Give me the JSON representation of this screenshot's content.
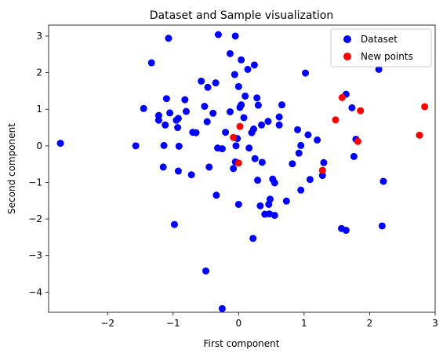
{
  "chart_data": {
    "type": "scatter",
    "title": "Dataset and Sample visualization",
    "xlabel": "First component",
    "ylabel": "Second component",
    "xlim": [
      -2.9,
      3.0
    ],
    "ylim": [
      -4.55,
      3.3
    ],
    "xticks": [
      -2,
      -1,
      0,
      1,
      2,
      3
    ],
    "yticks": [
      -4,
      -3,
      -2,
      -1,
      0,
      1,
      2,
      3
    ],
    "grid": false,
    "legend": "top-right",
    "series": [
      {
        "name": "Dataset",
        "color": "#0000ff",
        "points": [
          [
            -2.72,
            0.07
          ],
          [
            -1.57,
            0.0
          ],
          [
            -1.45,
            1.02
          ],
          [
            -1.33,
            2.27
          ],
          [
            -1.22,
            0.83
          ],
          [
            -1.22,
            0.7
          ],
          [
            -1.15,
            -0.58
          ],
          [
            -1.14,
            0.01
          ],
          [
            -1.12,
            0.57
          ],
          [
            -1.1,
            1.29
          ],
          [
            -1.07,
            2.94
          ],
          [
            -1.05,
            0.9
          ],
          [
            -0.98,
            -2.15
          ],
          [
            -0.95,
            0.7
          ],
          [
            -0.93,
            0.5
          ],
          [
            -0.92,
            0.75
          ],
          [
            -0.92,
            -0.69
          ],
          [
            -0.91,
            -0.01
          ],
          [
            -0.82,
            1.26
          ],
          [
            -0.8,
            0.94
          ],
          [
            -0.72,
            -0.79
          ],
          [
            -0.7,
            0.37
          ],
          [
            -0.65,
            0.36
          ],
          [
            -0.57,
            1.77
          ],
          [
            -0.52,
            1.08
          ],
          [
            -0.5,
            -3.42
          ],
          [
            -0.48,
            0.66
          ],
          [
            -0.47,
            1.6
          ],
          [
            -0.45,
            -0.58
          ],
          [
            -0.39,
            0.89
          ],
          [
            -0.35,
            1.72
          ],
          [
            -0.34,
            -1.35
          ],
          [
            -0.32,
            -0.06
          ],
          [
            -0.31,
            3.04
          ],
          [
            -0.25,
            -0.08
          ],
          [
            -0.25,
            -4.45
          ],
          [
            -0.2,
            0.37
          ],
          [
            -0.13,
            0.93
          ],
          [
            -0.13,
            2.52
          ],
          [
            -0.08,
            -0.62
          ],
          [
            -0.06,
            1.95
          ],
          [
            -0.05,
            3.0
          ],
          [
            -0.05,
            -0.44
          ],
          [
            -0.04,
            0.0
          ],
          [
            -0.02,
            0.2
          ],
          [
            0.0,
            -1.6
          ],
          [
            0.0,
            1.62
          ],
          [
            0.02,
            1.05
          ],
          [
            0.04,
            2.35
          ],
          [
            0.04,
            1.12
          ],
          [
            0.08,
            0.77
          ],
          [
            0.1,
            1.36
          ],
          [
            0.14,
            2.09
          ],
          [
            0.16,
            -0.06
          ],
          [
            0.2,
            0.36
          ],
          [
            0.22,
            -2.53
          ],
          [
            0.23,
            0.46
          ],
          [
            0.24,
            2.21
          ],
          [
            0.25,
            -0.35
          ],
          [
            0.28,
            1.31
          ],
          [
            0.29,
            -0.94
          ],
          [
            0.3,
            1.11
          ],
          [
            0.33,
            -1.64
          ],
          [
            0.35,
            0.57
          ],
          [
            0.36,
            -0.45
          ],
          [
            0.4,
            -1.87
          ],
          [
            0.45,
            0.67
          ],
          [
            0.46,
            -1.6
          ],
          [
            0.47,
            -1.86
          ],
          [
            0.48,
            -1.46
          ],
          [
            0.52,
            -0.91
          ],
          [
            0.55,
            -1.01
          ],
          [
            0.55,
            -1.9
          ],
          [
            0.62,
            0.79
          ],
          [
            0.62,
            0.57
          ],
          [
            0.66,
            1.12
          ],
          [
            0.73,
            -1.51
          ],
          [
            0.82,
            -0.49
          ],
          [
            0.9,
            0.44
          ],
          [
            0.92,
            -0.2
          ],
          [
            0.95,
            0.01
          ],
          [
            0.95,
            -1.21
          ],
          [
            1.02,
            1.99
          ],
          [
            1.06,
            0.3
          ],
          [
            1.09,
            -0.92
          ],
          [
            1.2,
            0.16
          ],
          [
            1.28,
            -0.81
          ],
          [
            1.3,
            -0.46
          ],
          [
            1.57,
            -2.26
          ],
          [
            1.64,
            -2.31
          ],
          [
            1.64,
            1.41
          ],
          [
            1.73,
            1.04
          ],
          [
            1.76,
            -0.29
          ],
          [
            1.79,
            0.18
          ],
          [
            2.14,
            2.09
          ],
          [
            2.19,
            -2.19
          ],
          [
            2.21,
            -0.97
          ]
        ]
      },
      {
        "name": "New points",
        "color": "#ff0000",
        "points": [
          [
            -0.08,
            0.23
          ],
          [
            0.02,
            0.53
          ],
          [
            0.0,
            -0.47
          ],
          [
            1.28,
            -0.67
          ],
          [
            1.48,
            0.71
          ],
          [
            1.58,
            1.32
          ],
          [
            1.82,
            0.12
          ],
          [
            1.86,
            0.96
          ],
          [
            2.76,
            0.29
          ],
          [
            2.84,
            1.07
          ]
        ]
      }
    ]
  }
}
